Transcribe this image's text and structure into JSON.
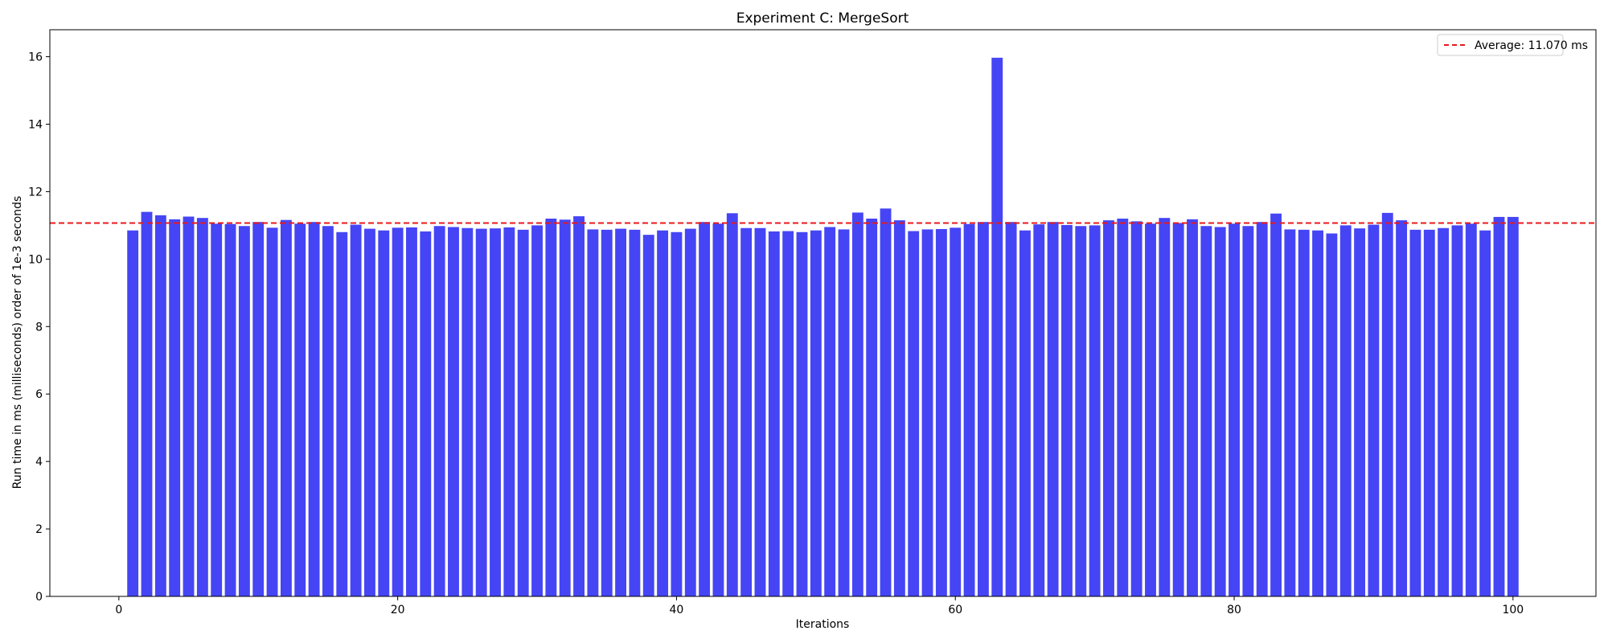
{
  "chart_data": {
    "type": "bar",
    "title": "Experiment C: MergeSort",
    "xlabel": "Iterations",
    "ylabel": "Run time in ms (milliseconds) order of 1e-3 seconds",
    "xlim": [
      -4.95,
      105.95
    ],
    "ylim": [
      0,
      16.8
    ],
    "xticks": [
      0,
      20,
      40,
      60,
      80,
      100
    ],
    "yticks": [
      0,
      2,
      4,
      6,
      8,
      10,
      12,
      14,
      16
    ],
    "grid": false,
    "legend_position": "top-right",
    "bar_color": "#4545f5",
    "average": {
      "value": 11.07,
      "label": "Average: 11.070 ms",
      "color": "#e8191b",
      "style": "dashed"
    },
    "x": [
      1,
      2,
      3,
      4,
      5,
      6,
      7,
      8,
      9,
      10,
      11,
      12,
      13,
      14,
      15,
      16,
      17,
      18,
      19,
      20,
      21,
      22,
      23,
      24,
      25,
      26,
      27,
      28,
      29,
      30,
      31,
      32,
      33,
      34,
      35,
      36,
      37,
      38,
      39,
      40,
      41,
      42,
      43,
      44,
      45,
      46,
      47,
      48,
      49,
      50,
      51,
      52,
      53,
      54,
      55,
      56,
      57,
      58,
      59,
      60,
      61,
      62,
      63,
      64,
      65,
      66,
      67,
      68,
      69,
      70,
      71,
      72,
      73,
      74,
      75,
      76,
      77,
      78,
      79,
      80,
      81,
      82,
      83,
      84,
      85,
      86,
      87,
      88,
      89,
      90,
      91,
      92,
      93,
      94,
      95,
      96,
      97,
      98,
      99,
      100
    ],
    "values": [
      10.85,
      11.4,
      11.3,
      11.18,
      11.26,
      11.22,
      11.05,
      11.04,
      10.98,
      11.1,
      10.93,
      11.16,
      11.05,
      11.1,
      10.98,
      10.8,
      11.02,
      10.9,
      10.85,
      10.93,
      10.94,
      10.82,
      10.98,
      10.95,
      10.92,
      10.9,
      10.91,
      10.94,
      10.87,
      11.0,
      11.2,
      11.17,
      11.27,
      10.88,
      10.87,
      10.9,
      10.87,
      10.72,
      10.85,
      10.8,
      10.9,
      11.1,
      11.05,
      11.36,
      10.92,
      10.92,
      10.82,
      10.83,
      10.8,
      10.85,
      10.95,
      10.88,
      11.38,
      11.2,
      11.5,
      11.15,
      10.83,
      10.88,
      10.89,
      10.93,
      11.04,
      11.1,
      15.97,
      11.1,
      10.85,
      11.03,
      11.1,
      11.01,
      10.98,
      11.0,
      11.15,
      11.2,
      11.12,
      11.05,
      11.22,
      11.07,
      11.18,
      10.98,
      10.95,
      11.05,
      10.98,
      11.1,
      11.35,
      10.88,
      10.87,
      10.85,
      10.76,
      11.0,
      10.91,
      11.02,
      11.37,
      11.15,
      10.87,
      10.87,
      10.92,
      11.0,
      11.05,
      10.85,
      11.25,
      11.25
    ]
  }
}
